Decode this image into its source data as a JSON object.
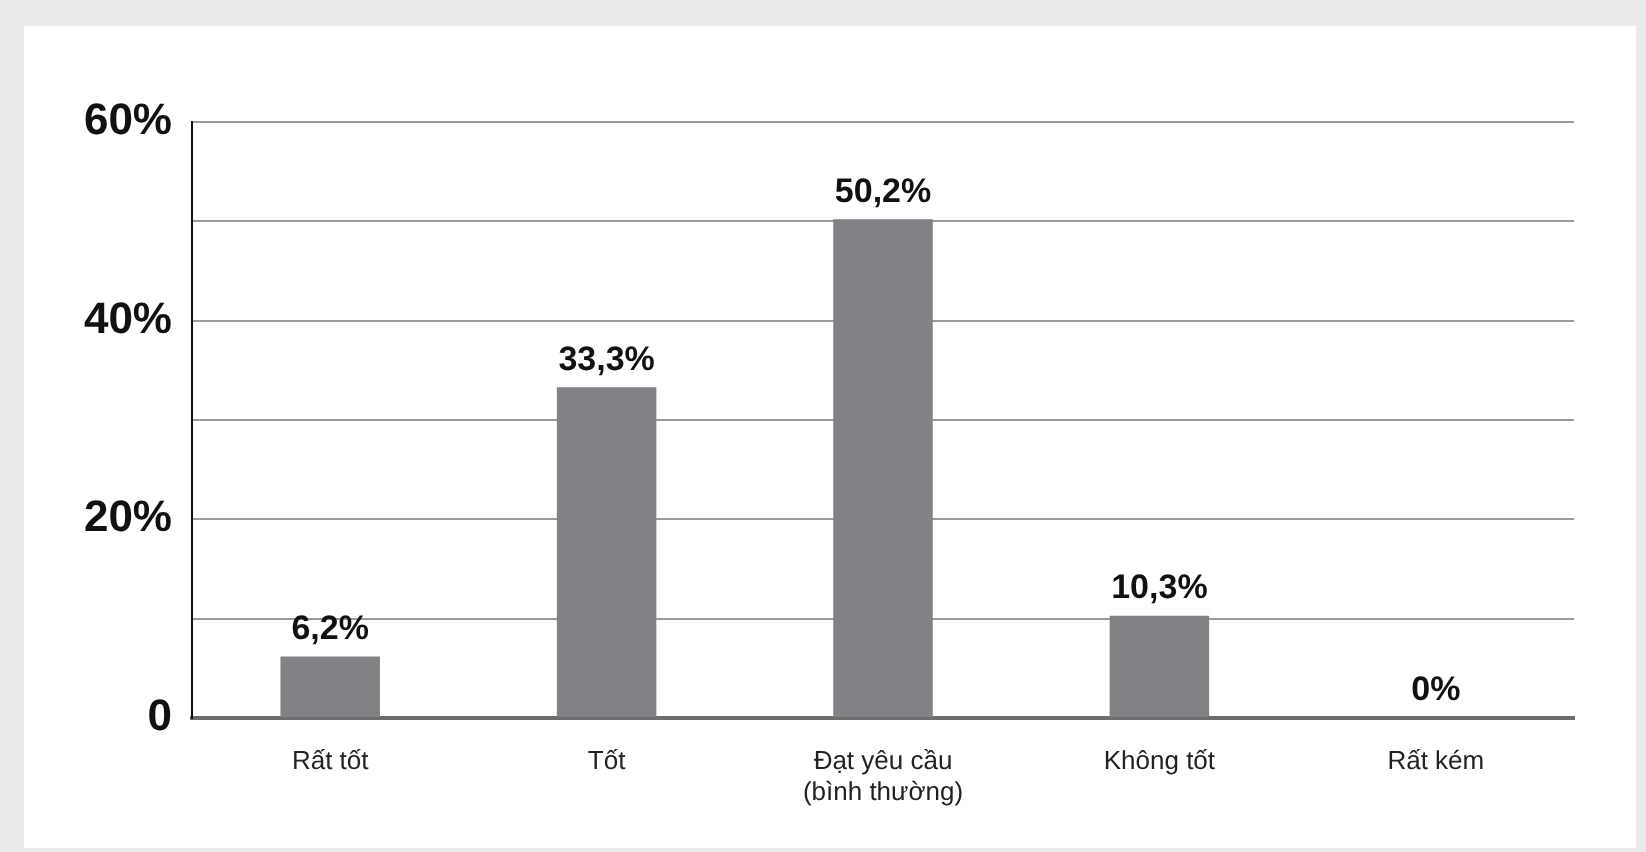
{
  "chart_data": {
    "type": "bar",
    "categories": [
      "Rất tốt",
      "Tốt",
      "Đạt yêu cầu\n(bình thường)",
      "Không tốt",
      "Rất kém"
    ],
    "values": [
      6.2,
      33.3,
      50.2,
      10.3,
      0
    ],
    "value_labels": [
      "6,2%",
      "33,3%",
      "50,2%",
      "10,3%",
      "0%"
    ],
    "color": "#808285",
    "ylim": [
      0,
      60
    ],
    "yticks": [
      0,
      {
        "value": 10,
        "label": null
      },
      {
        "value": 20,
        "label": "20%"
      },
      {
        "value": 30,
        "label": null
      },
      {
        "value": 40,
        "label": "40%"
      },
      {
        "value": 50,
        "label": null
      },
      {
        "value": 60,
        "label": "60%"
      }
    ],
    "grid": "y"
  }
}
